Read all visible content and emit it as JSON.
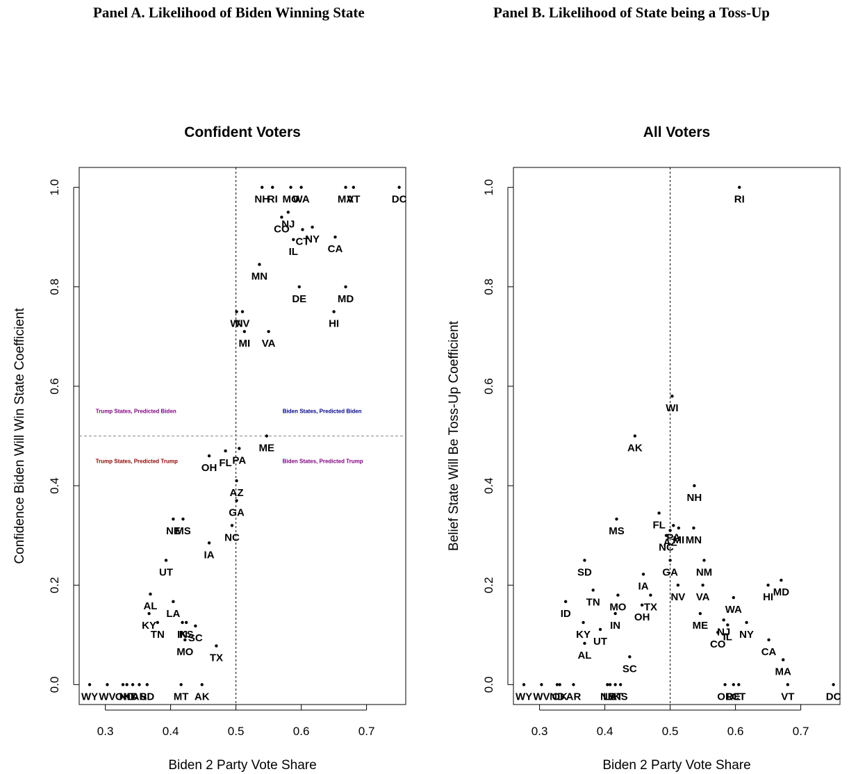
{
  "panel_titles": {
    "a": "Panel A. Likelihood of Biden Winning State",
    "b": "Panel B. Likelihood of State being a Toss-Up"
  },
  "chart_data": [
    {
      "type": "scatter",
      "title": "Confident Voters",
      "xlabel": "Biden 2 Party Vote Share",
      "ylabel": "Confidence Biden Will Win State Coefficient",
      "xlim": [
        0.26,
        0.76
      ],
      "ylim": [
        -0.04,
        1.04
      ],
      "xticks": [
        0.3,
        0.4,
        0.5,
        0.6,
        0.7
      ],
      "xtick_labels": [
        "0.3",
        "0.4",
        "0.5",
        "0.6",
        "0.7"
      ],
      "yticks": [
        0.0,
        0.2,
        0.4,
        0.6,
        0.8,
        1.0
      ],
      "ytick_labels": [
        "0.0",
        "0.2",
        "0.4",
        "0.6",
        "0.8",
        "1.0"
      ],
      "vline": 0.5,
      "hline": 0.5,
      "quadrant_labels": [
        {
          "text": "Trump States, Predicted Biden",
          "x": 0.347,
          "y": 0.55,
          "color": "#800080"
        },
        {
          "text": "Biden States, Predicted Biden",
          "x": 0.632,
          "y": 0.55,
          "color": "#00008b"
        },
        {
          "text": "Trump States, Predicted Trump",
          "x": 0.348,
          "y": 0.45,
          "color": "#8b0000"
        },
        {
          "text": "Biden States, Predicted Trump",
          "x": 0.633,
          "y": 0.45,
          "color": "#800080"
        }
      ],
      "points": [
        {
          "x": 0.54,
          "y": 1.0,
          "label": "NH"
        },
        {
          "x": 0.556,
          "y": 1.0,
          "label": "RI"
        },
        {
          "x": 0.584,
          "y": 1.0,
          "label": "MO"
        },
        {
          "x": 0.6,
          "y": 1.0,
          "label": "WA"
        },
        {
          "x": 0.668,
          "y": 1.0,
          "label": "MA"
        },
        {
          "x": 0.68,
          "y": 1.0,
          "label": "VT"
        },
        {
          "x": 0.75,
          "y": 1.0,
          "label": "DC"
        },
        {
          "x": 0.57,
          "y": 0.94,
          "label": "CO"
        },
        {
          "x": 0.58,
          "y": 0.95,
          "label": "NJ"
        },
        {
          "x": 0.602,
          "y": 0.915,
          "label": "CT"
        },
        {
          "x": 0.617,
          "y": 0.92,
          "label": "NY"
        },
        {
          "x": 0.652,
          "y": 0.9,
          "label": "CA"
        },
        {
          "x": 0.588,
          "y": 0.895,
          "label": "IL"
        },
        {
          "x": 0.536,
          "y": 0.845,
          "label": "MN"
        },
        {
          "x": 0.597,
          "y": 0.8,
          "label": "DE"
        },
        {
          "x": 0.668,
          "y": 0.8,
          "label": "MD"
        },
        {
          "x": 0.501,
          "y": 0.75,
          "label": "WI"
        },
        {
          "x": 0.51,
          "y": 0.75,
          "label": "NV"
        },
        {
          "x": 0.65,
          "y": 0.75,
          "label": "HI"
        },
        {
          "x": 0.513,
          "y": 0.71,
          "label": "MI"
        },
        {
          "x": 0.55,
          "y": 0.71,
          "label": "VA"
        },
        {
          "x": 0.547,
          "y": 0.5,
          "label": "ME"
        },
        {
          "x": 0.459,
          "y": 0.46,
          "label": "OH"
        },
        {
          "x": 0.484,
          "y": 0.47,
          "label": "FL"
        },
        {
          "x": 0.505,
          "y": 0.475,
          "label": "PA"
        },
        {
          "x": 0.501,
          "y": 0.41,
          "label": "AZ"
        },
        {
          "x": 0.501,
          "y": 0.37,
          "label": "GA"
        },
        {
          "x": 0.494,
          "y": 0.32,
          "label": "NC"
        },
        {
          "x": 0.404,
          "y": 0.333,
          "label": "NE"
        },
        {
          "x": 0.419,
          "y": 0.333,
          "label": "MS"
        },
        {
          "x": 0.459,
          "y": 0.285,
          "label": "IA"
        },
        {
          "x": 0.393,
          "y": 0.25,
          "label": "UT"
        },
        {
          "x": 0.369,
          "y": 0.182,
          "label": "AL"
        },
        {
          "x": 0.404,
          "y": 0.167,
          "label": "LA"
        },
        {
          "x": 0.367,
          "y": 0.143,
          "label": "KY"
        },
        {
          "x": 0.38,
          "y": 0.125,
          "label": "TN"
        },
        {
          "x": 0.418,
          "y": 0.125,
          "label": "IN"
        },
        {
          "x": 0.424,
          "y": 0.125,
          "label": "KS"
        },
        {
          "x": 0.438,
          "y": 0.118,
          "label": "SC"
        },
        {
          "x": 0.422,
          "y": 0.09,
          "label": "MO"
        },
        {
          "x": 0.47,
          "y": 0.078,
          "label": "TX"
        },
        {
          "x": 0.276,
          "y": 0.0,
          "label": "WY"
        },
        {
          "x": 0.303,
          "y": 0.0,
          "label": "WV"
        },
        {
          "x": 0.327,
          "y": 0.0,
          "label": "OK"
        },
        {
          "x": 0.333,
          "y": 0.0,
          "label": "ND"
        },
        {
          "x": 0.342,
          "y": 0.0,
          "label": "ID"
        },
        {
          "x": 0.352,
          "y": 0.0,
          "label": "AR"
        },
        {
          "x": 0.364,
          "y": 0.0,
          "label": "SD"
        },
        {
          "x": 0.416,
          "y": 0.0,
          "label": "MT"
        },
        {
          "x": 0.448,
          "y": 0.0,
          "label": "AK"
        }
      ]
    },
    {
      "type": "scatter",
      "title": "All Voters",
      "xlabel": "Biden 2 Party Vote Share",
      "ylabel": "Belief State Will Be Toss-Up Coefficient",
      "xlim": [
        0.26,
        0.76
      ],
      "ylim": [
        -0.04,
        1.04
      ],
      "xticks": [
        0.3,
        0.4,
        0.5,
        0.6,
        0.7
      ],
      "xtick_labels": [
        "0.3",
        "0.4",
        "0.5",
        "0.6",
        "0.7"
      ],
      "yticks": [
        0.0,
        0.2,
        0.4,
        0.6,
        0.8,
        1.0
      ],
      "ytick_labels": [
        "0.0",
        "0.2",
        "0.4",
        "0.6",
        "0.8",
        "1.0"
      ],
      "vline": 0.5,
      "points": [
        {
          "x": 0.606,
          "y": 1.0,
          "label": "RI"
        },
        {
          "x": 0.503,
          "y": 0.58,
          "label": "WI"
        },
        {
          "x": 0.446,
          "y": 0.5,
          "label": "AK"
        },
        {
          "x": 0.537,
          "y": 0.4,
          "label": "NH"
        },
        {
          "x": 0.483,
          "y": 0.345,
          "label": "FL"
        },
        {
          "x": 0.418,
          "y": 0.333,
          "label": "MS"
        },
        {
          "x": 0.505,
          "y": 0.32,
          "label": "PA"
        },
        {
          "x": 0.5,
          "y": 0.31,
          "label": "AZ"
        },
        {
          "x": 0.513,
          "y": 0.315,
          "label": "MI"
        },
        {
          "x": 0.536,
          "y": 0.315,
          "label": "MN"
        },
        {
          "x": 0.494,
          "y": 0.3,
          "label": "NC"
        },
        {
          "x": 0.5,
          "y": 0.25,
          "label": "GA"
        },
        {
          "x": 0.552,
          "y": 0.25,
          "label": "NM"
        },
        {
          "x": 0.369,
          "y": 0.25,
          "label": "SD"
        },
        {
          "x": 0.459,
          "y": 0.222,
          "label": "IA"
        },
        {
          "x": 0.512,
          "y": 0.2,
          "label": "NV"
        },
        {
          "x": 0.55,
          "y": 0.2,
          "label": "VA"
        },
        {
          "x": 0.65,
          "y": 0.2,
          "label": "HI"
        },
        {
          "x": 0.67,
          "y": 0.21,
          "label": "MD"
        },
        {
          "x": 0.382,
          "y": 0.19,
          "label": "TN"
        },
        {
          "x": 0.47,
          "y": 0.18,
          "label": "TX"
        },
        {
          "x": 0.42,
          "y": 0.18,
          "label": "MO"
        },
        {
          "x": 0.34,
          "y": 0.167,
          "label": "ID"
        },
        {
          "x": 0.457,
          "y": 0.16,
          "label": "OH"
        },
        {
          "x": 0.597,
          "y": 0.175,
          "label": "WA"
        },
        {
          "x": 0.416,
          "y": 0.143,
          "label": "IN"
        },
        {
          "x": 0.546,
          "y": 0.143,
          "label": "ME"
        },
        {
          "x": 0.367,
          "y": 0.125,
          "label": "KY"
        },
        {
          "x": 0.582,
          "y": 0.13,
          "label": "NJ"
        },
        {
          "x": 0.588,
          "y": 0.12,
          "label": "IL"
        },
        {
          "x": 0.617,
          "y": 0.125,
          "label": "NY"
        },
        {
          "x": 0.393,
          "y": 0.111,
          "label": "UT"
        },
        {
          "x": 0.573,
          "y": 0.105,
          "label": "CO"
        },
        {
          "x": 0.651,
          "y": 0.09,
          "label": "CA"
        },
        {
          "x": 0.369,
          "y": 0.083,
          "label": "AL"
        },
        {
          "x": 0.673,
          "y": 0.05,
          "label": "MA"
        },
        {
          "x": 0.438,
          "y": 0.056,
          "label": "SC"
        },
        {
          "x": 0.276,
          "y": 0.0,
          "label": "WY"
        },
        {
          "x": 0.303,
          "y": 0.0,
          "label": "WV"
        },
        {
          "x": 0.327,
          "y": 0.0,
          "label": "ND"
        },
        {
          "x": 0.331,
          "y": 0.0,
          "label": "OK"
        },
        {
          "x": 0.352,
          "y": 0.0,
          "label": "AR"
        },
        {
          "x": 0.404,
          "y": 0.0,
          "label": "NE"
        },
        {
          "x": 0.408,
          "y": 0.0,
          "label": "LA"
        },
        {
          "x": 0.416,
          "y": 0.0,
          "label": "MT"
        },
        {
          "x": 0.424,
          "y": 0.0,
          "label": "KS"
        },
        {
          "x": 0.584,
          "y": 0.0,
          "label": "OR"
        },
        {
          "x": 0.597,
          "y": 0.0,
          "label": "DE"
        },
        {
          "x": 0.605,
          "y": 0.0,
          "label": "CT"
        },
        {
          "x": 0.68,
          "y": 0.0,
          "label": "VT"
        },
        {
          "x": 0.75,
          "y": 0.0,
          "label": "DC"
        }
      ]
    }
  ]
}
